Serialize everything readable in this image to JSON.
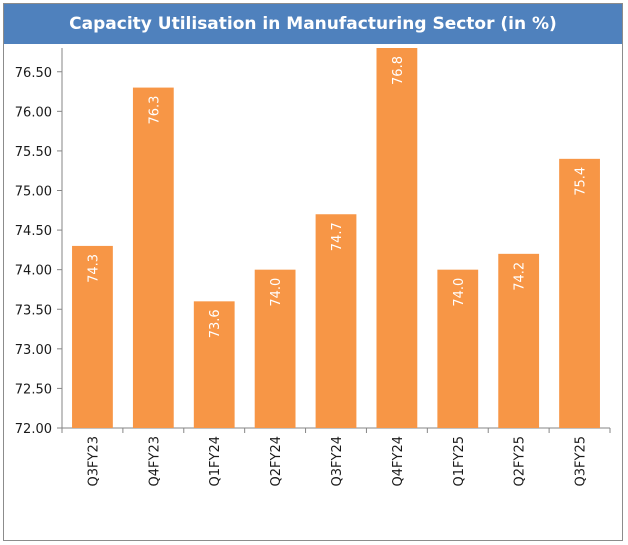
{
  "chart_data": {
    "type": "bar",
    "title": "Capacity Utilisation in Manufacturing Sector (in %)",
    "categories": [
      "Q3FY23",
      "Q4FY23",
      "Q1FY24",
      "Q2FY24",
      "Q3FY24",
      "Q4FY24",
      "Q1FY25",
      "Q2FY25",
      "Q3FY25"
    ],
    "values": [
      74.3,
      76.3,
      73.6,
      74.0,
      74.7,
      76.8,
      74.0,
      74.2,
      75.4
    ],
    "data_labels": [
      "74.3",
      "76.3",
      "73.6",
      "74.0",
      "74.7",
      "76.8",
      "74.0",
      "74.2",
      "75.4"
    ],
    "ylim": [
      72.0,
      76.8
    ],
    "yticks": [
      72.0,
      72.5,
      73.0,
      73.5,
      74.0,
      74.5,
      75.0,
      75.5,
      76.0,
      76.5
    ],
    "ytick_labels": [
      "72.00",
      "72.50",
      "73.00",
      "73.50",
      "74.00",
      "74.50",
      "75.00",
      "75.50",
      "76.00",
      "76.50"
    ],
    "xlabel": "",
    "ylabel": "",
    "grid": false,
    "legend": "none",
    "colors": {
      "bar": "#f79646",
      "title_bg": "#4f81bd",
      "title_text": "#ffffff",
      "axis": "#868686"
    }
  }
}
